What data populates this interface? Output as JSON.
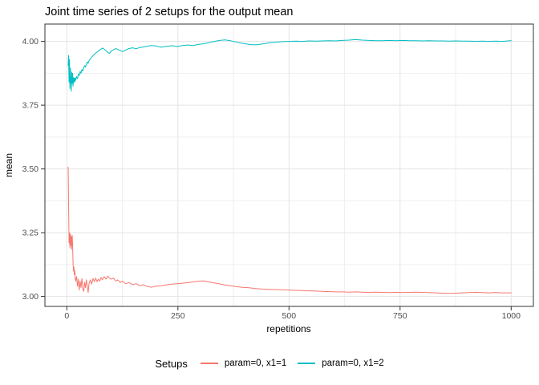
{
  "figure": {
    "background": "#FFFFFF"
  },
  "chart_data": {
    "type": "line",
    "title": "Joint time series of 2 setups for the output mean",
    "xlabel": "repetitions",
    "ylabel": "mean",
    "xlim": [
      -49.3,
      1050
    ],
    "ylim": [
      2.961,
      4.068
    ],
    "grid": true,
    "x_ticks": {
      "values": [
        0,
        250,
        500,
        750,
        1000
      ],
      "labels": [
        "0",
        "250",
        "500",
        "750",
        "1000"
      ]
    },
    "y_ticks": {
      "values": [
        3.0,
        3.25,
        3.5,
        3.75,
        4.0
      ],
      "labels": [
        "3.00",
        "3.25",
        "3.50",
        "3.75",
        "4.00"
      ]
    },
    "x_minor": [
      125,
      375,
      625,
      875
    ],
    "y_minor": [
      3.125,
      3.375,
      3.625,
      3.875
    ],
    "legend": {
      "title": "Setups",
      "position": "bottom"
    },
    "styles": {
      "grid_major": "#e4e4e4",
      "grid_minor": "#efefef",
      "panel_border": "#333333",
      "tick_color": "#333333",
      "tick_label_color": "#4d4d4d",
      "title_color": "#000000"
    },
    "series": [
      {
        "name": "param=0, x1=1",
        "color": "#F8766D",
        "points": [
          [
            3,
            3.507
          ],
          [
            4,
            3.365
          ],
          [
            5,
            3.21
          ],
          [
            6,
            3.25
          ],
          [
            7,
            3.19
          ],
          [
            8,
            3.245
          ],
          [
            9,
            3.2
          ],
          [
            10,
            3.235
          ],
          [
            11,
            3.185
          ],
          [
            12,
            3.24
          ],
          [
            13,
            3.205
          ],
          [
            14,
            3.13
          ],
          [
            15,
            3.1
          ],
          [
            16,
            3.115
          ],
          [
            17,
            3.085
          ],
          [
            18,
            3.1
          ],
          [
            19,
            3.07
          ],
          [
            20,
            3.06
          ],
          [
            22,
            3.078
          ],
          [
            24,
            3.04
          ],
          [
            26,
            3.068
          ],
          [
            28,
            3.025
          ],
          [
            30,
            3.06
          ],
          [
            32,
            3.035
          ],
          [
            34,
            3.07
          ],
          [
            36,
            3.03
          ],
          [
            38,
            3.02
          ],
          [
            40,
            3.055
          ],
          [
            42,
            3.035
          ],
          [
            44,
            3.065
          ],
          [
            46,
            3.04
          ],
          [
            48,
            3.015
          ],
          [
            50,
            3.05
          ],
          [
            53,
            3.065
          ],
          [
            56,
            3.048
          ],
          [
            59,
            3.07
          ],
          [
            62,
            3.058
          ],
          [
            65,
            3.072
          ],
          [
            68,
            3.058
          ],
          [
            71,
            3.068
          ],
          [
            74,
            3.06
          ],
          [
            77,
            3.075
          ],
          [
            80,
            3.065
          ],
          [
            84,
            3.078
          ],
          [
            88,
            3.068
          ],
          [
            92,
            3.08
          ],
          [
            96,
            3.072
          ],
          [
            100,
            3.068
          ],
          [
            105,
            3.072
          ],
          [
            110,
            3.06
          ],
          [
            115,
            3.065
          ],
          [
            120,
            3.055
          ],
          [
            126,
            3.06
          ],
          [
            132,
            3.05
          ],
          [
            140,
            3.054
          ],
          [
            148,
            3.046
          ],
          [
            156,
            3.05
          ],
          [
            164,
            3.042
          ],
          [
            172,
            3.046
          ],
          [
            180,
            3.04
          ],
          [
            190,
            3.036
          ],
          [
            200,
            3.04
          ],
          [
            212,
            3.042
          ],
          [
            224,
            3.045
          ],
          [
            236,
            3.048
          ],
          [
            248,
            3.05
          ],
          [
            260,
            3.052
          ],
          [
            272,
            3.054
          ],
          [
            284,
            3.057
          ],
          [
            296,
            3.06
          ],
          [
            308,
            3.061
          ],
          [
            320,
            3.057
          ],
          [
            332,
            3.053
          ],
          [
            344,
            3.049
          ],
          [
            356,
            3.045
          ],
          [
            368,
            3.042
          ],
          [
            380,
            3.039
          ],
          [
            395,
            3.036
          ],
          [
            410,
            3.034
          ],
          [
            425,
            3.031
          ],
          [
            440,
            3.029
          ],
          [
            455,
            3.028
          ],
          [
            470,
            3.027
          ],
          [
            485,
            3.026
          ],
          [
            500,
            3.025
          ],
          [
            515,
            3.024
          ],
          [
            530,
            3.023
          ],
          [
            545,
            3.022
          ],
          [
            560,
            3.021
          ],
          [
            575,
            3.02
          ],
          [
            590,
            3.019
          ],
          [
            605,
            3.018
          ],
          [
            620,
            3.018
          ],
          [
            635,
            3.017
          ],
          [
            650,
            3.018
          ],
          [
            665,
            3.017
          ],
          [
            680,
            3.016
          ],
          [
            695,
            3.017
          ],
          [
            710,
            3.016
          ],
          [
            725,
            3.015
          ],
          [
            740,
            3.016
          ],
          [
            755,
            3.015
          ],
          [
            770,
            3.016
          ],
          [
            785,
            3.017
          ],
          [
            800,
            3.016
          ],
          [
            815,
            3.015
          ],
          [
            830,
            3.014
          ],
          [
            845,
            3.013
          ],
          [
            860,
            3.012
          ],
          [
            875,
            3.013
          ],
          [
            890,
            3.014
          ],
          [
            905,
            3.015
          ],
          [
            920,
            3.016
          ],
          [
            935,
            3.015
          ],
          [
            950,
            3.014
          ],
          [
            965,
            3.015
          ],
          [
            980,
            3.014
          ],
          [
            1000,
            3.014
          ]
        ]
      },
      {
        "name": "param=0, x1=2",
        "color": "#00BFC4",
        "points": [
          [
            3,
            3.905
          ],
          [
            4,
            3.945
          ],
          [
            5,
            3.84
          ],
          [
            6,
            3.93
          ],
          [
            7,
            3.815
          ],
          [
            8,
            3.895
          ],
          [
            9,
            3.855
          ],
          [
            10,
            3.805
          ],
          [
            11,
            3.88
          ],
          [
            12,
            3.835
          ],
          [
            13,
            3.875
          ],
          [
            14,
            3.825
          ],
          [
            15,
            3.858
          ],
          [
            16,
            3.84
          ],
          [
            17,
            3.856
          ],
          [
            18,
            3.842
          ],
          [
            19,
            3.857
          ],
          [
            20,
            3.848
          ],
          [
            22,
            3.862
          ],
          [
            24,
            3.854
          ],
          [
            26,
            3.872
          ],
          [
            28,
            3.866
          ],
          [
            30,
            3.882
          ],
          [
            32,
            3.875
          ],
          [
            34,
            3.89
          ],
          [
            36,
            3.884
          ],
          [
            38,
            3.898
          ],
          [
            40,
            3.905
          ],
          [
            42,
            3.899
          ],
          [
            44,
            3.912
          ],
          [
            46,
            3.92
          ],
          [
            48,
            3.914
          ],
          [
            50,
            3.924
          ],
          [
            53,
            3.932
          ],
          [
            56,
            3.938
          ],
          [
            59,
            3.944
          ],
          [
            62,
            3.95
          ],
          [
            65,
            3.954
          ],
          [
            68,
            3.958
          ],
          [
            71,
            3.962
          ],
          [
            74,
            3.966
          ],
          [
            77,
            3.97
          ],
          [
            80,
            3.974
          ],
          [
            84,
            3.97
          ],
          [
            88,
            3.964
          ],
          [
            92,
            3.957
          ],
          [
            96,
            3.953
          ],
          [
            100,
            3.962
          ],
          [
            105,
            3.967
          ],
          [
            110,
            3.972
          ],
          [
            115,
            3.968
          ],
          [
            120,
            3.964
          ],
          [
            126,
            3.96
          ],
          [
            132,
            3.966
          ],
          [
            140,
            3.972
          ],
          [
            148,
            3.975
          ],
          [
            156,
            3.971
          ],
          [
            164,
            3.976
          ],
          [
            172,
            3.978
          ],
          [
            180,
            3.981
          ],
          [
            190,
            3.984
          ],
          [
            200,
            3.982
          ],
          [
            212,
            3.977
          ],
          [
            224,
            3.981
          ],
          [
            236,
            3.983
          ],
          [
            248,
            3.98
          ],
          [
            260,
            3.984
          ],
          [
            272,
            3.986
          ],
          [
            284,
            3.984
          ],
          [
            296,
            3.988
          ],
          [
            308,
            3.991
          ],
          [
            320,
            3.995
          ],
          [
            332,
            4.0
          ],
          [
            344,
            4.004
          ],
          [
            356,
            4.006
          ],
          [
            368,
            4.003
          ],
          [
            380,
            3.998
          ],
          [
            392,
            3.993
          ],
          [
            404,
            3.99
          ],
          [
            416,
            3.987
          ],
          [
            428,
            3.987
          ],
          [
            440,
            3.99
          ],
          [
            455,
            3.994
          ],
          [
            470,
            3.997
          ],
          [
            485,
            3.999
          ],
          [
            500,
            4.0
          ],
          [
            515,
            4.001
          ],
          [
            530,
            4.0
          ],
          [
            545,
            4.002
          ],
          [
            560,
            4.001
          ],
          [
            575,
            4.002
          ],
          [
            590,
            4.003
          ],
          [
            605,
            4.002
          ],
          [
            620,
            4.004
          ],
          [
            635,
            4.005
          ],
          [
            650,
            4.007
          ],
          [
            665,
            4.005
          ],
          [
            680,
            4.004
          ],
          [
            695,
            4.003
          ],
          [
            710,
            4.003
          ],
          [
            725,
            4.004
          ],
          [
            740,
            4.003
          ],
          [
            755,
            4.004
          ],
          [
            770,
            4.003
          ],
          [
            785,
            4.003
          ],
          [
            800,
            4.002
          ],
          [
            815,
            4.003
          ],
          [
            830,
            4.002
          ],
          [
            845,
            4.002
          ],
          [
            860,
            4.001
          ],
          [
            875,
            4.002
          ],
          [
            890,
            4.001
          ],
          [
            905,
            4.001
          ],
          [
            920,
            4.0
          ],
          [
            935,
            4.001
          ],
          [
            950,
            4.0
          ],
          [
            965,
            4.001
          ],
          [
            980,
            4.0
          ],
          [
            1000,
            4.003
          ]
        ]
      }
    ]
  }
}
